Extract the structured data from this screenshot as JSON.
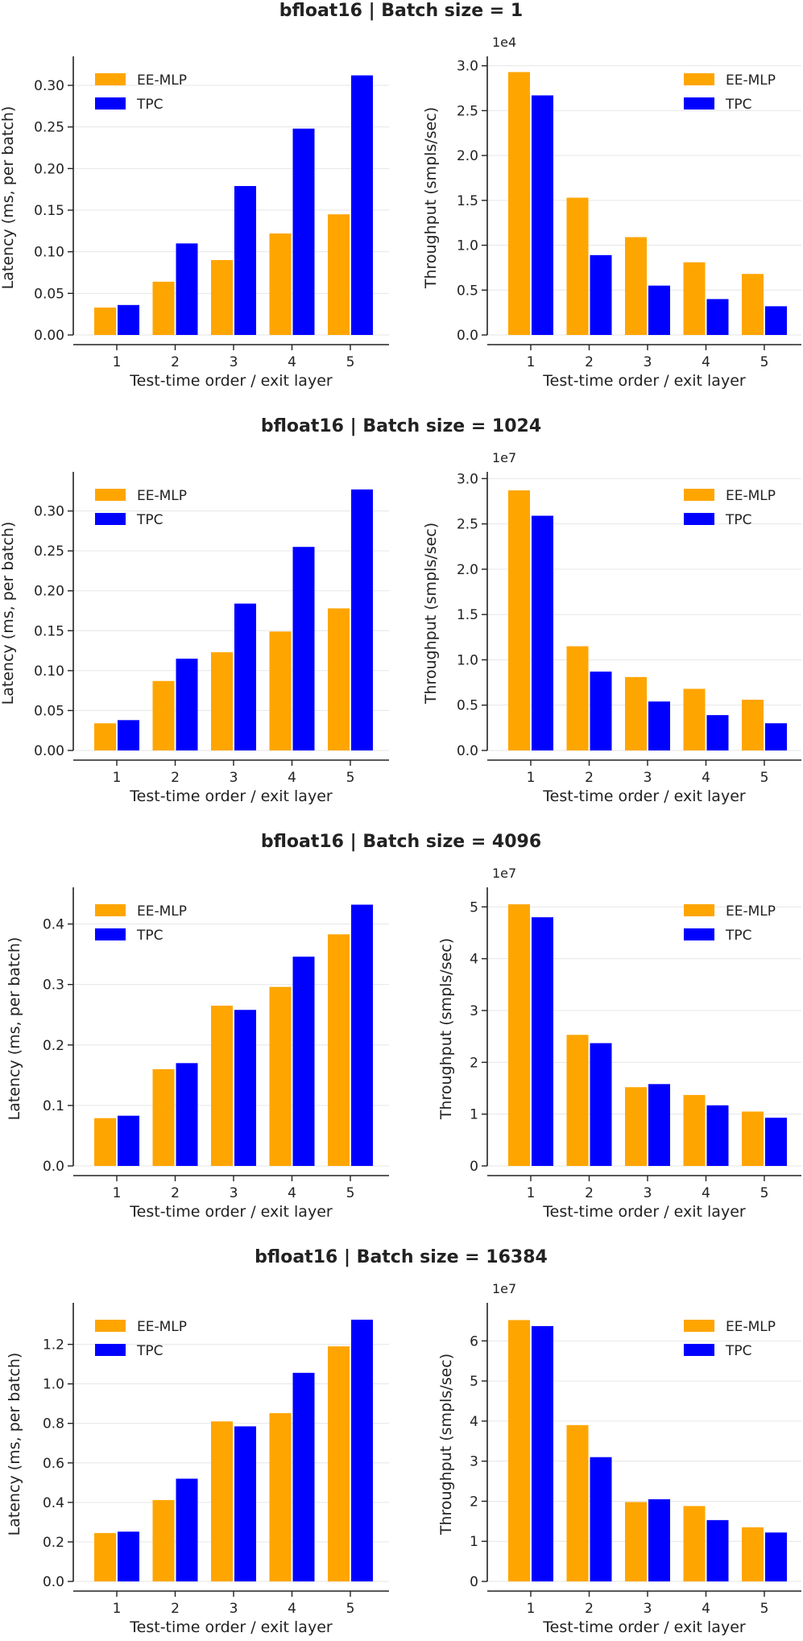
{
  "colors": {
    "EE-MLP": "#FFA500",
    "TPC": "#0000FF"
  },
  "chart_data": [
    {
      "row_title": "bfloat16 | Batch size = 1",
      "type": "bar",
      "panel": "left",
      "categories": [
        "1",
        "2",
        "3",
        "4",
        "5"
      ],
      "series": [
        {
          "name": "EE-MLP",
          "values": [
            0.033,
            0.064,
            0.09,
            0.122,
            0.145
          ]
        },
        {
          "name": "TPC",
          "values": [
            0.036,
            0.11,
            0.179,
            0.248,
            0.312
          ]
        }
      ],
      "xlabel": "Test-time order / exit layer",
      "ylabel": "Latency (ms, per batch)",
      "ylim": [
        0,
        0.33
      ],
      "yticks": [
        0.0,
        0.05,
        0.1,
        0.15,
        0.2,
        0.25,
        0.3
      ],
      "ytick_labels": [
        "0.00",
        "0.05",
        "0.10",
        "0.15",
        "0.20",
        "0.25",
        "0.30"
      ],
      "scale_label": "",
      "legend": "top-left"
    },
    {
      "type": "bar",
      "panel": "right",
      "categories": [
        "1",
        "2",
        "3",
        "4",
        "5"
      ],
      "series": [
        {
          "name": "EE-MLP",
          "values": [
            2.93,
            1.53,
            1.09,
            0.81,
            0.68
          ]
        },
        {
          "name": "TPC",
          "values": [
            2.67,
            0.89,
            0.55,
            0.4,
            0.32
          ]
        }
      ],
      "xlabel": "Test-time order / exit layer",
      "ylabel": "Throughput (smpls/sec)",
      "ylim": [
        0,
        3.06
      ],
      "yticks": [
        0.0,
        0.5,
        1.0,
        1.5,
        2.0,
        2.5,
        3.0
      ],
      "ytick_labels": [
        "0.0",
        "0.5",
        "1.0",
        "1.5",
        "2.0",
        "2.5",
        "3.0"
      ],
      "scale_label": "1e4",
      "legend": "top-right"
    },
    {
      "row_title": "bfloat16 | Batch size = 1024",
      "type": "bar",
      "panel": "left",
      "categories": [
        "1",
        "2",
        "3",
        "4",
        "5"
      ],
      "series": [
        {
          "name": "EE-MLP",
          "values": [
            0.034,
            0.087,
            0.123,
            0.149,
            0.178
          ]
        },
        {
          "name": "TPC",
          "values": [
            0.038,
            0.115,
            0.184,
            0.255,
            0.327
          ]
        }
      ],
      "xlabel": "Test-time order / exit layer",
      "ylabel": "Latency (ms, per batch)",
      "ylim": [
        0,
        0.344
      ],
      "yticks": [
        0.0,
        0.05,
        0.1,
        0.15,
        0.2,
        0.25,
        0.3
      ],
      "ytick_labels": [
        "0.00",
        "0.05",
        "0.10",
        "0.15",
        "0.20",
        "0.25",
        "0.30"
      ],
      "scale_label": "",
      "legend": "top-left"
    },
    {
      "type": "bar",
      "panel": "right",
      "categories": [
        "1",
        "2",
        "3",
        "4",
        "5"
      ],
      "series": [
        {
          "name": "EE-MLP",
          "values": [
            2.87,
            1.15,
            0.81,
            0.68,
            0.56
          ]
        },
        {
          "name": "TPC",
          "values": [
            2.59,
            0.87,
            0.54,
            0.39,
            0.3
          ]
        }
      ],
      "xlabel": "Test-time order / exit layer",
      "ylabel": "Throughput (smpls/sec)",
      "ylim": [
        0,
        3.03
      ],
      "yticks": [
        0.0,
        0.5,
        1.0,
        1.5,
        2.0,
        2.5,
        3.0
      ],
      "ytick_labels": [
        "0.0",
        "0.5",
        "1.0",
        "1.5",
        "2.0",
        "2.5",
        "3.0"
      ],
      "scale_label": "1e7",
      "legend": "top-right"
    },
    {
      "row_title": "bfloat16 | Batch size = 4096",
      "type": "bar",
      "panel": "left",
      "categories": [
        "1",
        "2",
        "3",
        "4",
        "5"
      ],
      "series": [
        {
          "name": "EE-MLP",
          "values": [
            0.079,
            0.16,
            0.265,
            0.296,
            0.383
          ]
        },
        {
          "name": "TPC",
          "values": [
            0.083,
            0.17,
            0.258,
            0.346,
            0.432
          ]
        }
      ],
      "xlabel": "Test-time order / exit layer",
      "ylabel": "Latency (ms, per batch)",
      "ylim": [
        0,
        0.454
      ],
      "yticks": [
        0.0,
        0.1,
        0.2,
        0.3,
        0.4
      ],
      "ytick_labels": [
        "0.0",
        "0.1",
        "0.2",
        "0.3",
        "0.4"
      ],
      "scale_label": "",
      "legend": "top-left"
    },
    {
      "type": "bar",
      "panel": "right",
      "categories": [
        "1",
        "2",
        "3",
        "4",
        "5"
      ],
      "series": [
        {
          "name": "EE-MLP",
          "values": [
            5.05,
            2.53,
            1.52,
            1.37,
            1.05
          ]
        },
        {
          "name": "TPC",
          "values": [
            4.8,
            2.37,
            1.58,
            1.17,
            0.93
          ]
        }
      ],
      "xlabel": "Test-time order / exit layer",
      "ylabel": "Throughput (smpls/sec)",
      "ylim": [
        0,
        5.3
      ],
      "yticks": [
        0,
        1,
        2,
        3,
        4,
        5
      ],
      "ytick_labels": [
        "0",
        "1",
        "2",
        "3",
        "4",
        "5"
      ],
      "scale_label": "1e7",
      "legend": "top-right"
    },
    {
      "row_title": "bfloat16 | Batch size = 16384",
      "type": "bar",
      "panel": "left",
      "categories": [
        "1",
        "2",
        "3",
        "4",
        "5"
      ],
      "series": [
        {
          "name": "EE-MLP",
          "values": [
            0.245,
            0.412,
            0.81,
            0.852,
            1.19
          ]
        },
        {
          "name": "TPC",
          "values": [
            0.252,
            0.52,
            0.785,
            1.056,
            1.325
          ]
        }
      ],
      "xlabel": "Test-time order / exit layer",
      "ylabel": "Latency (ms, per batch)",
      "ylim": [
        0,
        1.39
      ],
      "yticks": [
        0.0,
        0.2,
        0.4,
        0.6,
        0.8,
        1.0,
        1.2
      ],
      "ytick_labels": [
        "0.0",
        "0.2",
        "0.4",
        "0.6",
        "0.8",
        "1.0",
        "1.2"
      ],
      "scale_label": "",
      "legend": "top-left"
    },
    {
      "type": "bar",
      "panel": "right",
      "categories": [
        "1",
        "2",
        "3",
        "4",
        "5"
      ],
      "series": [
        {
          "name": "EE-MLP",
          "values": [
            6.52,
            3.9,
            1.98,
            1.88,
            1.35
          ]
        },
        {
          "name": "TPC",
          "values": [
            6.37,
            3.1,
            2.05,
            1.53,
            1.22
          ]
        }
      ],
      "xlabel": "Test-time order / exit layer",
      "ylabel": "Throughput (smpls/sec)",
      "ylim": [
        0,
        6.85
      ],
      "yticks": [
        0,
        1,
        2,
        3,
        4,
        5,
        6
      ],
      "ytick_labels": [
        "0",
        "1",
        "2",
        "3",
        "4",
        "5",
        "6"
      ],
      "scale_label": "1e7",
      "legend": "top-right"
    }
  ]
}
